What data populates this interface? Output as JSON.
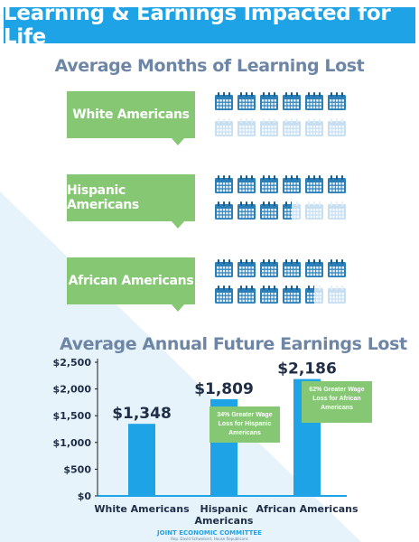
{
  "banner": {
    "title": "Learning & Earnings Impacted for Life"
  },
  "learning": {
    "title": "Average Months of Learning Lost",
    "groups": [
      {
        "label": "White Americans",
        "months": 6
      },
      {
        "label": "Hispanic Americans",
        "months": 9.5
      },
      {
        "label": "African Americans",
        "months": 10.5
      }
    ]
  },
  "earnings": {
    "title": "Average Annual Future Earnings Lost",
    "callouts": [
      "34% Greater Wage Loss for Hispanic Americans",
      "62% Greater Wage Loss for African Americans"
    ]
  },
  "footer": {
    "org": "JOINT ECONOMIC COMMITTEE",
    "sub": "Rep. David Schweikert, House Republicans"
  },
  "colors": {
    "banner": "#1da3e6",
    "bar": "#1da3e6",
    "bubble": "#85c773",
    "title": "#6e86a6",
    "calendar_full": "#2a7fb8",
    "calendar_faded": "#c7dff1"
  },
  "icons": {
    "calendar": "calendar-icon"
  },
  "chart_data": {
    "type": "bar",
    "title": "Average Annual Future Earnings Lost",
    "categories": [
      "White Americans",
      "Hispanic Americans",
      "African Americans"
    ],
    "values": [
      1348,
      1809,
      2186
    ],
    "value_labels": [
      "$1,348",
      "$1,809",
      "$2,186"
    ],
    "ylim": [
      0,
      2500
    ],
    "yticks": [
      0,
      500,
      1000,
      1500,
      2000,
      2500
    ],
    "ytick_labels": [
      "$0",
      "$500",
      "$1,000",
      "$1,500",
      "$2,000",
      "$2,500"
    ],
    "grid": false,
    "xlabel": "",
    "ylabel": ""
  }
}
